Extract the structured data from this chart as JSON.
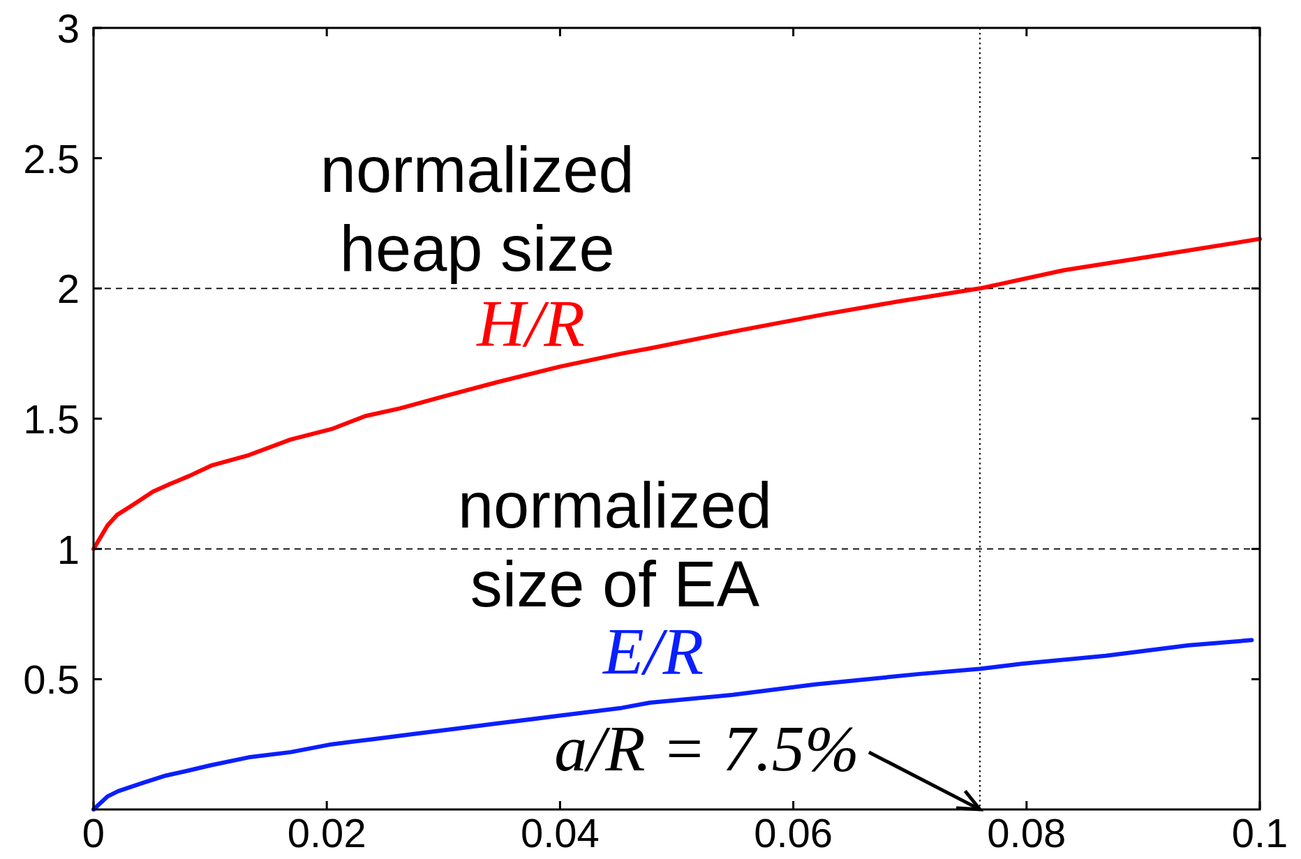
{
  "chart_data": {
    "type": "line",
    "xlim": [
      0,
      0.1
    ],
    "xticks": [
      0,
      0.02,
      0.04,
      0.06,
      0.08,
      0.1
    ],
    "ylim": [
      0,
      3
    ],
    "yticks": [
      0.5,
      1,
      1.5,
      2,
      2.5,
      3
    ],
    "series": [
      {
        "name": "H/R",
        "color": "#ff0000",
        "x": [
          0,
          0.0012,
          0.002,
          0.0034,
          0.0051,
          0.0066,
          0.0082,
          0.0101,
          0.0133,
          0.0169,
          0.0204,
          0.0233,
          0.0263,
          0.0304,
          0.0346,
          0.04,
          0.0453,
          0.0477,
          0.0555,
          0.0626,
          0.069,
          0.076,
          0.0832,
          0.0903,
          0.1
        ],
        "values": [
          1,
          1.09,
          1.13,
          1.17,
          1.22,
          1.25,
          1.28,
          1.32,
          1.36,
          1.42,
          1.46,
          1.51,
          1.54,
          1.59,
          1.64,
          1.7,
          1.75,
          1.77,
          1.84,
          1.9,
          1.95,
          2.0,
          2.07,
          2.12,
          2.19
        ]
      },
      {
        "name": "E/R",
        "color": "#0a1eff",
        "x": [
          0,
          0.0012,
          0.0021,
          0.0041,
          0.0062,
          0.0082,
          0.0101,
          0.0133,
          0.0169,
          0.0204,
          0.024,
          0.0275,
          0.0311,
          0.0346,
          0.04,
          0.0453,
          0.0477,
          0.0548,
          0.0619,
          0.0708,
          0.076,
          0.0797,
          0.0868,
          0.0939,
          0.0993
        ],
        "values": [
          0,
          0.05,
          0.07,
          0.1,
          0.13,
          0.15,
          0.17,
          0.2,
          0.22,
          0.25,
          0.27,
          0.29,
          0.31,
          0.33,
          0.36,
          0.39,
          0.41,
          0.44,
          0.48,
          0.52,
          0.54,
          0.56,
          0.59,
          0.63,
          0.65
        ]
      }
    ],
    "ref_lines": [
      {
        "axis": "y",
        "value": 2,
        "color": "#000000",
        "line_style": "dashed"
      },
      {
        "axis": "y",
        "value": 1,
        "color": "#000000",
        "line_style": "dashed"
      },
      {
        "axis": "x",
        "value": 0.076,
        "color": "#000000",
        "line_style": "dotted"
      }
    ],
    "annotations": [
      "normalized heap size",
      "normalized size of EA",
      {
        "text": "a/R = 7.5%",
        "x": 0.076,
        "y": 0
      }
    ]
  }
}
